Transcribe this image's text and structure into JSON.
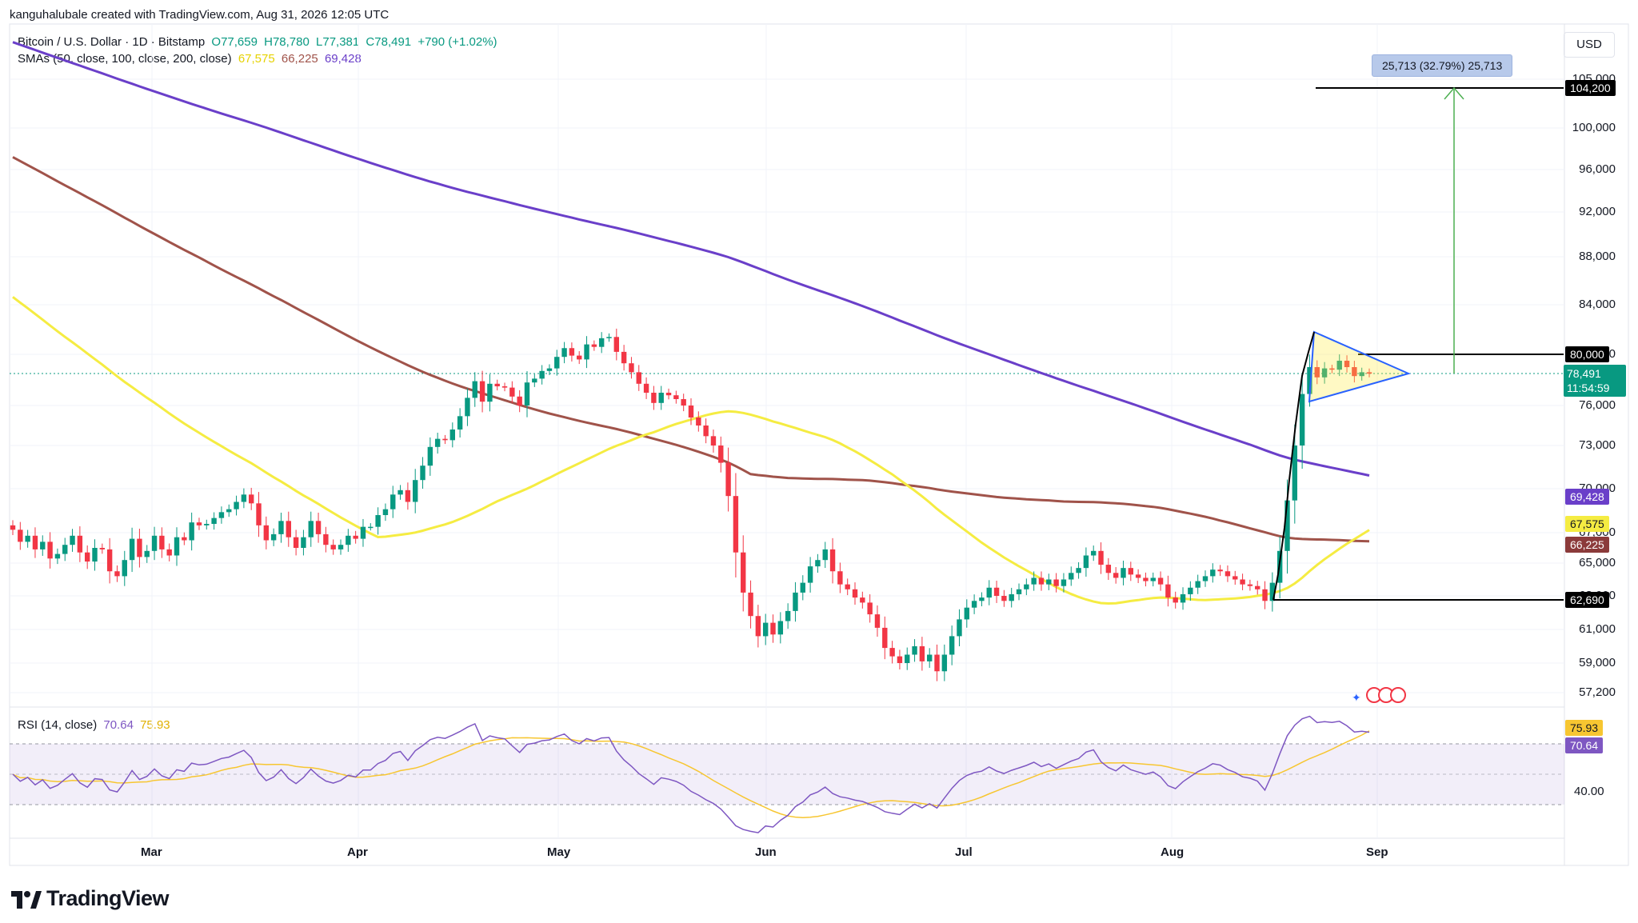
{
  "header": {
    "credit": "kanguhalubale created with TradingView.com, Aug 31, 2026 12:05 UTC"
  },
  "legend": {
    "symbol": "Bitcoin / U.S. Dollar · 1D · Bitstamp",
    "o": "O77,659",
    "h": "H78,780",
    "l": "L77,381",
    "c": "C78,491",
    "chg": "+790 (+1.02%)",
    "sma_label": "SMAs (50, close, 100, close, 200, close)",
    "sma50": "67,575",
    "sma100": "66,225",
    "sma200": "69,428",
    "rsi_label": "RSI (14, close)",
    "rsi_val": "70.64",
    "rsi_ma": "75.93"
  },
  "currency": "USD",
  "measure_label": "25,713 (32.79%) 25,713",
  "price_tags": {
    "target": "104,200",
    "resistance": "80,000",
    "last": "78,491",
    "countdown": "11:54:59",
    "sma200": "69,428",
    "sma50": "67,575",
    "sma100": "66,225",
    "support": "62,690",
    "rsi_ma": "75.93",
    "rsi": "70.64"
  },
  "brand": "TradingView",
  "colors": {
    "up": "#089981",
    "down": "#f23645",
    "sma50": "#f5ec42",
    "sma100": "#a0534a",
    "sma200": "#6a3fc9",
    "rsi": "#7e57c2",
    "rsi_ma": "#f7c631",
    "triangle": "#2962ff",
    "target": "#4caf50"
  },
  "chart_data": {
    "type": "candlestick",
    "title": "Bitcoin / U.S. Dollar · 1D · Bitstamp",
    "y_axis_ticks": [
      57200,
      59000,
      61000,
      63000,
      65000,
      67000,
      70000,
      73000,
      76000,
      80000,
      84000,
      88000,
      92000,
      96000,
      100000,
      105000
    ],
    "x_axis_ticks": [
      "Mar",
      "Apr",
      "May",
      "Jun",
      "Jul",
      "Aug",
      "Sep"
    ],
    "rsi_axis_ticks": [
      40.0
    ],
    "ohlc_close": [
      67200,
      66400,
      66800,
      65900,
      66400,
      65300,
      65600,
      66200,
      66800,
      65700,
      65100,
      66000,
      65900,
      64500,
      64200,
      65200,
      66600,
      65400,
      65800,
      66800,
      65900,
      65500,
      66700,
      66500,
      67700,
      67500,
      67600,
      68000,
      68400,
      68600,
      69100,
      69600,
      69000,
      67500,
      66500,
      66900,
      67800,
      66700,
      66000,
      66700,
      67800,
      66900,
      66200,
      65900,
      66200,
      66800,
      66600,
      67400,
      67400,
      68200,
      68600,
      69600,
      69900,
      69100,
      70600,
      71600,
      72900,
      73500,
      73400,
      74200,
      75200,
      76600,
      77900,
      76300,
      77700,
      77500,
      77400,
      76700,
      76000,
      77800,
      78100,
      78700,
      78900,
      79800,
      80500,
      79900,
      79600,
      80800,
      80600,
      81300,
      81400,
      80200,
      79300,
      78600,
      77700,
      77000,
      76200,
      77000,
      76800,
      76500,
      76000,
      75100,
      74500,
      73700,
      73000,
      71800,
      69500,
      65700,
      63200,
      61800,
      60600,
      61400,
      60700,
      61500,
      62100,
      63200,
      63800,
      64800,
      65200,
      65900,
      64500,
      63700,
      63400,
      62900,
      62600,
      61900,
      61100,
      59900,
      59400,
      59000,
      59500,
      60000,
      59100,
      59500,
      58500,
      59500,
      60600,
      61600,
      62300,
      62700,
      62900,
      63500,
      63000,
      62700,
      63100,
      63400,
      63700,
      64100,
      63700,
      64000,
      63600,
      64000,
      64400,
      64700,
      65500,
      65800,
      64900,
      64400,
      64100,
      64700,
      64300,
      64100,
      63900,
      64100,
      63700,
      62900,
      62600,
      63100,
      63500,
      63900,
      64200,
      64600,
      64500,
      64200,
      64000,
      63700,
      63600,
      63400,
      62700,
      63800,
      65800,
      69200,
      73000,
      76900,
      79000,
      78200,
      78900,
      78800,
      79500,
      79000,
      78300,
      78600,
      78491
    ],
    "sma_series": [
      {
        "name": "SMA 50",
        "last": 67575
      },
      {
        "name": "SMA 100",
        "last": 66225
      },
      {
        "name": "SMA 200",
        "last": 69428
      }
    ],
    "annotations": {
      "resistance": 80000,
      "support": 62690,
      "target": 104200,
      "measured_move": "25,713 (32.79%) 25,713"
    },
    "rsi": {
      "period": 14,
      "value": 70.64,
      "ma": 75.93,
      "bands": [
        30,
        70
      ]
    }
  }
}
